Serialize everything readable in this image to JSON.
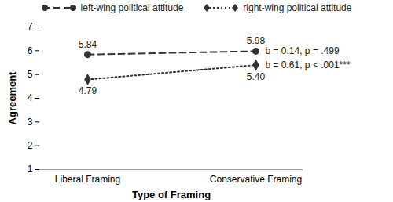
{
  "chart_data": {
    "type": "line",
    "x_label": "Type of Framing",
    "y_label": "Agreement",
    "categories": [
      "Liberal Framing",
      "Conservative Framing"
    ],
    "series": [
      {
        "name": "left-wing political attitude",
        "color": "#333333",
        "line_style": "dashed",
        "marker": "circle",
        "values": [
          5.84,
          5.98
        ],
        "value_labels": [
          "5.84",
          "5.98"
        ]
      },
      {
        "name": "right-wing political attitude",
        "color": "#333333",
        "line_style": "dotted",
        "marker": "diamond",
        "values": [
          4.79,
          5.4
        ],
        "value_labels": [
          "4.79",
          "5.40"
        ]
      }
    ],
    "ylim": [
      1,
      7
    ],
    "yticks": [
      1,
      2,
      3,
      4,
      5,
      6,
      7
    ],
    "data_labels": true,
    "legend": "top",
    "annotations": [
      {
        "text": "b = 0.14, p = .499",
        "series": "left-wing political attitude"
      },
      {
        "text": "b = 0.61, p < .001***",
        "series": "right-wing political attitude"
      }
    ]
  }
}
